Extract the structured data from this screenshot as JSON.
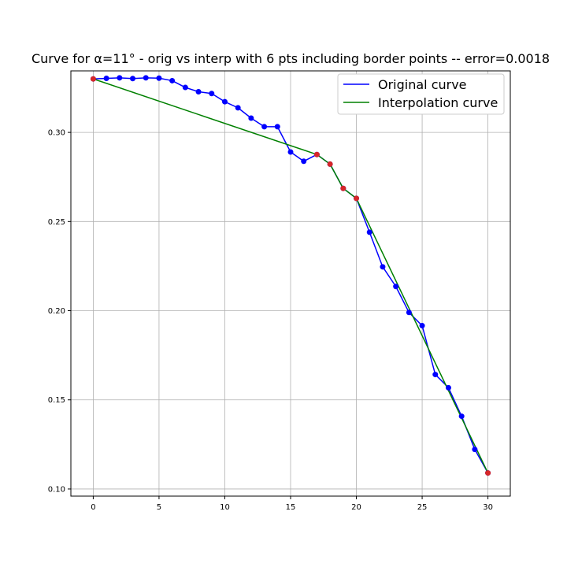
{
  "chart_data": {
    "type": "line",
    "title": "Curve for α=11° - orig vs interp with 6 pts including border points -- error=0.0018",
    "xlabel": "",
    "ylabel": "",
    "xlim": [
      -1.7,
      31.7
    ],
    "ylim": [
      0.096,
      0.3345
    ],
    "x_ticks": [
      0,
      5,
      10,
      15,
      20,
      25,
      30
    ],
    "x_tick_labels": [
      "0",
      "5",
      "10",
      "15",
      "20",
      "25",
      "30"
    ],
    "y_ticks": [
      0.1,
      0.15,
      0.2,
      0.25,
      0.3
    ],
    "y_tick_labels": [
      "0.10",
      "0.15",
      "0.20",
      "0.25",
      "0.30"
    ],
    "grid": true,
    "legend_position": "top-right",
    "series": [
      {
        "name": "Original curve",
        "color": "#0000ff",
        "marker": "circle",
        "x": [
          0,
          1,
          2,
          3,
          4,
          5,
          6,
          7,
          8,
          9,
          10,
          11,
          12,
          13,
          14,
          15,
          16,
          17,
          18,
          19,
          20,
          21,
          22,
          23,
          24,
          25,
          26,
          27,
          28,
          29,
          30
        ],
        "y": [
          0.33,
          0.3303,
          0.3306,
          0.3302,
          0.3306,
          0.3304,
          0.329,
          0.3252,
          0.3228,
          0.3218,
          0.3172,
          0.3138,
          0.308,
          0.3032,
          0.3032,
          0.289,
          0.2838,
          0.2876,
          0.2822,
          0.2686,
          0.263,
          0.244,
          0.2246,
          0.2136,
          0.199,
          0.1916,
          0.1642,
          0.1568,
          0.1408,
          0.1222,
          0.109
        ]
      },
      {
        "name": "Interpolation curve",
        "color": "#008000",
        "marker": "none",
        "x": [
          0,
          17,
          18,
          19,
          20,
          30
        ],
        "y": [
          0.33,
          0.2876,
          0.2822,
          0.2686,
          0.263,
          0.109
        ]
      }
    ],
    "highlight_points": {
      "color": "#d62728",
      "x": [
        0,
        17,
        18,
        19,
        20,
        30
      ],
      "y": [
        0.33,
        0.2876,
        0.2822,
        0.2686,
        0.263,
        0.109
      ]
    }
  }
}
